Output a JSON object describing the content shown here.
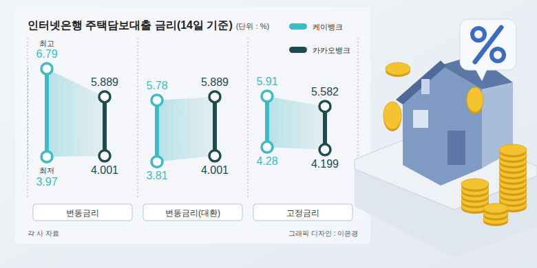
{
  "chart_data": {
    "type": "range",
    "title": "인터넷은행 주택담보대출 금리(14일 기준)",
    "subtitle": "(단위 : %)",
    "categories": [
      "변동금리",
      "변동금리(대환)",
      "고정금리"
    ],
    "series": [
      {
        "name": "케이뱅크",
        "color": "#3bbcc5",
        "values": [
          [
            3.97,
            6.79
          ],
          [
            3.81,
            5.78
          ],
          [
            4.28,
            5.91
          ]
        ]
      },
      {
        "name": "카카오뱅크",
        "color": "#1f4b50",
        "values": [
          [
            4.001,
            5.889
          ],
          [
            4.001,
            5.889
          ],
          [
            4.199,
            5.582
          ]
        ]
      }
    ],
    "annotations": [
      "최고",
      "최저"
    ],
    "source": "각 사 자료",
    "credit": "그래픽 디자인 : 이은경",
    "ylim": [
      3.6,
      6.9
    ],
    "data_labels": true,
    "tick_labels": false,
    "legend": "top-right",
    "grid": false
  }
}
